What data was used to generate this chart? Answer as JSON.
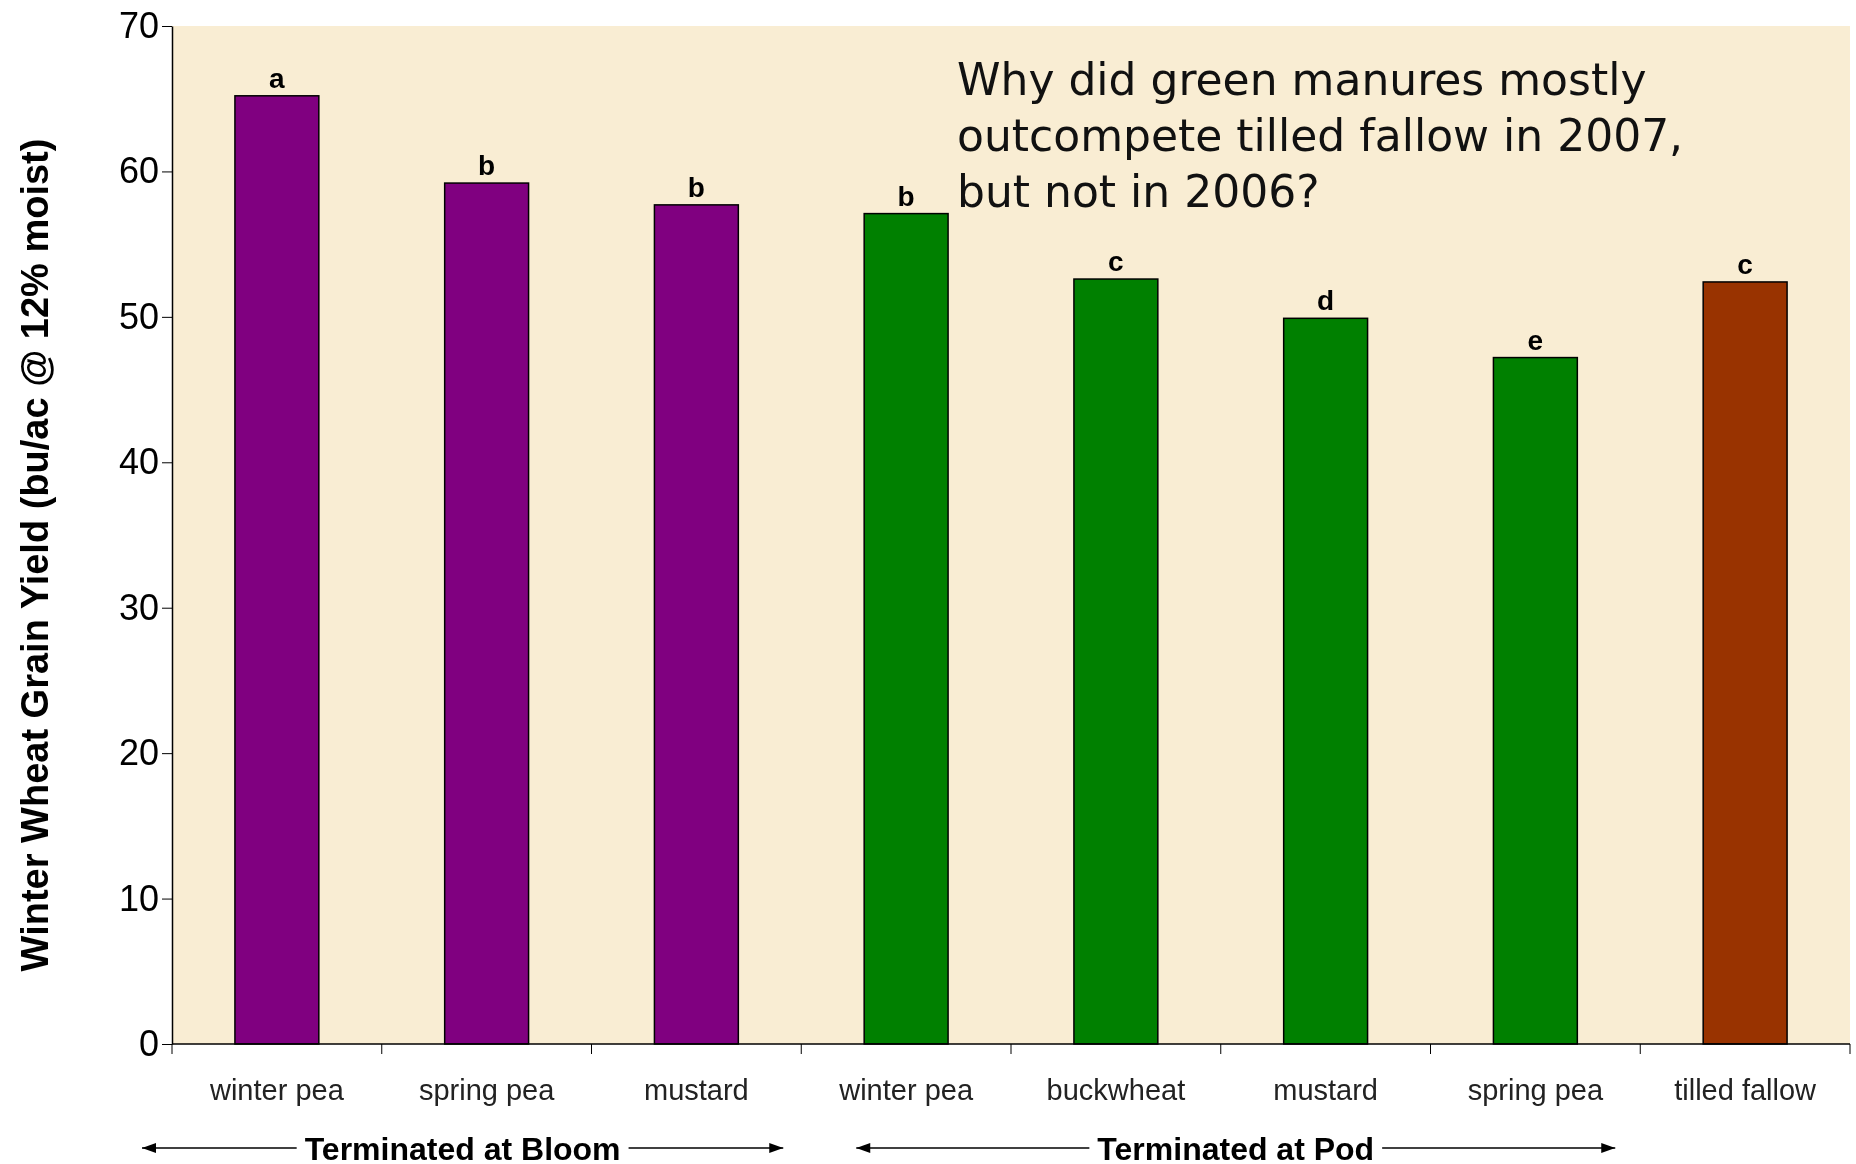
{
  "chart_data": {
    "type": "bar",
    "ylabel": "Winter Wheat Grain Yield (bu/ac @ 12% moist)",
    "categories": [
      "winter pea",
      "spring pea",
      "mustard",
      "winter pea",
      "buckwheat",
      "mustard",
      "spring pea",
      "tilled fallow"
    ],
    "values": [
      65.2,
      59.2,
      57.7,
      57.1,
      52.6,
      49.9,
      47.2,
      52.4
    ],
    "colors": [
      "#800080",
      "#800080",
      "#800080",
      "#008000",
      "#008000",
      "#008000",
      "#008000",
      "#993300"
    ],
    "value_labels": [
      "a",
      "b",
      "b",
      "b",
      "c",
      "d",
      "e",
      "c"
    ],
    "ylim": [
      0,
      70
    ],
    "yticks": [
      0,
      10,
      20,
      30,
      40,
      50,
      60,
      70
    ],
    "grid": false,
    "annotations": [
      "Why did green manures mostly outcompete tilled fallow in 2007, but not in 2006?",
      "Terminated at Bloom",
      "Terminated at Pod"
    ]
  }
}
